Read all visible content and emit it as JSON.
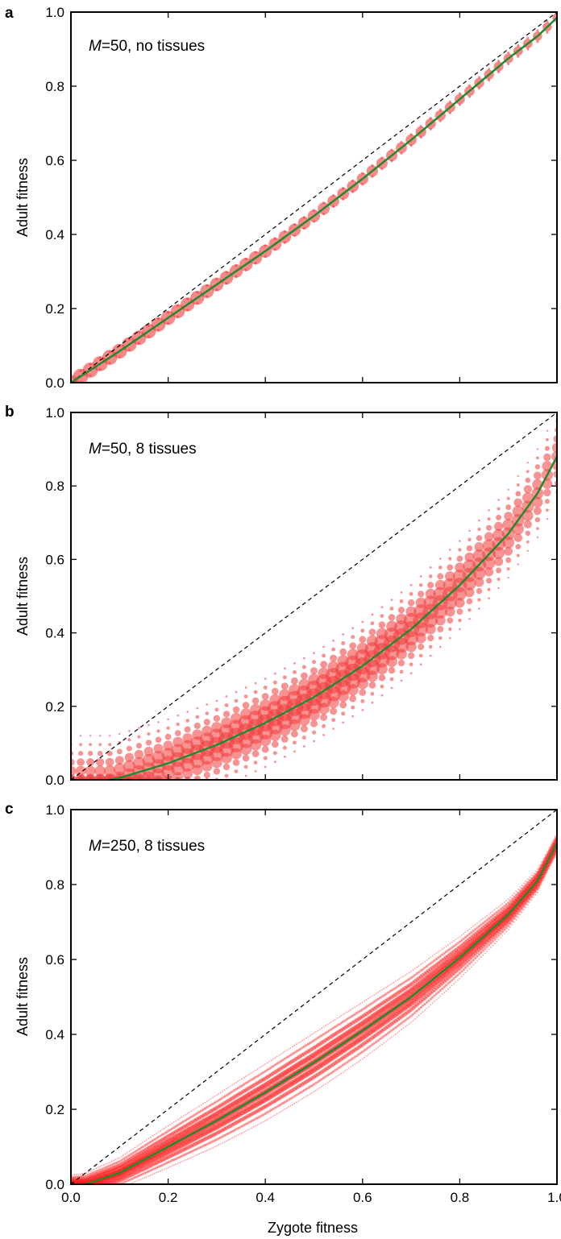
{
  "figure": {
    "xlabel": "Zygote fitness",
    "ylabel": "Adult fitness",
    "colors": {
      "scatter": "#f23b3b",
      "scatter_dense": "#ff1a1a",
      "fit_line": "#1f8a2e",
      "identity_line": "#000000"
    }
  },
  "chart_data": [
    {
      "panel_label": "a",
      "type": "scatter",
      "annotation_var": "M",
      "annotation_rest": "=50, no tissues",
      "xlim": [
        0,
        1
      ],
      "ylim": [
        0,
        1
      ],
      "xticks": [
        "0.0",
        "0.2",
        "0.4",
        "0.6",
        "0.8",
        "1.0"
      ],
      "yticks": [
        "0.0",
        "0.2",
        "0.4",
        "0.6",
        "0.8",
        "1.0"
      ],
      "show_xtick_labels": false,
      "grid": false,
      "reference_line": {
        "type": "identity",
        "style": "dashed",
        "points": [
          [
            0,
            0
          ],
          [
            1,
            1
          ]
        ]
      },
      "fit_line": {
        "style": "solid",
        "points": [
          [
            0,
            0
          ],
          [
            0.1,
            0.085
          ],
          [
            0.2,
            0.175
          ],
          [
            0.3,
            0.265
          ],
          [
            0.4,
            0.355
          ],
          [
            0.5,
            0.45
          ],
          [
            0.6,
            0.55
          ],
          [
            0.7,
            0.655
          ],
          [
            0.8,
            0.765
          ],
          [
            0.9,
            0.875
          ],
          [
            0.96,
            0.935
          ],
          [
            1,
            0.985
          ]
        ]
      },
      "scatter": {
        "x_step": 0.02,
        "spread": 0.015,
        "note": "clusters of point masses centred on the fit line, marker size proportional to frequency"
      }
    },
    {
      "panel_label": "b",
      "type": "scatter",
      "annotation_var": "M",
      "annotation_rest": "=50, 8 tissues",
      "xlim": [
        0,
        1
      ],
      "ylim": [
        0,
        1
      ],
      "xticks": [
        "0.0",
        "0.2",
        "0.4",
        "0.6",
        "0.8",
        "1.0"
      ],
      "yticks": [
        "0.0",
        "0.2",
        "0.4",
        "0.6",
        "0.8",
        "1.0"
      ],
      "show_xtick_labels": false,
      "grid": false,
      "reference_line": {
        "type": "identity",
        "style": "dashed",
        "points": [
          [
            0,
            0
          ],
          [
            1,
            1
          ]
        ]
      },
      "fit_line": {
        "style": "solid",
        "points": [
          [
            0.08,
            0
          ],
          [
            0.1,
            0.005
          ],
          [
            0.2,
            0.045
          ],
          [
            0.3,
            0.095
          ],
          [
            0.4,
            0.155
          ],
          [
            0.5,
            0.225
          ],
          [
            0.6,
            0.31
          ],
          [
            0.7,
            0.41
          ],
          [
            0.8,
            0.53
          ],
          [
            0.9,
            0.67
          ],
          [
            0.96,
            0.78
          ],
          [
            1,
            0.88
          ]
        ]
      },
      "scatter": {
        "x_step": 0.02,
        "spread": 0.12,
        "note": "vertical columns of points centred on the fit line, marker size proportional to frequency"
      }
    },
    {
      "panel_label": "c",
      "type": "scatter",
      "annotation_var": "M",
      "annotation_rest": "=250, 8 tissues",
      "xlim": [
        0,
        1
      ],
      "ylim": [
        0,
        1
      ],
      "xticks": [
        "0.0",
        "0.2",
        "0.4",
        "0.6",
        "0.8",
        "1.0"
      ],
      "yticks": [
        "0.0",
        "0.2",
        "0.4",
        "0.6",
        "0.8",
        "1.0"
      ],
      "show_xtick_labels": true,
      "grid": false,
      "reference_line": {
        "type": "identity",
        "style": "dashed",
        "points": [
          [
            0,
            0
          ],
          [
            1,
            1
          ]
        ]
      },
      "fit_line": {
        "style": "solid",
        "points": [
          [
            0.03,
            0
          ],
          [
            0.1,
            0.03
          ],
          [
            0.2,
            0.1
          ],
          [
            0.3,
            0.17
          ],
          [
            0.4,
            0.245
          ],
          [
            0.5,
            0.325
          ],
          [
            0.6,
            0.41
          ],
          [
            0.7,
            0.5
          ],
          [
            0.8,
            0.605
          ],
          [
            0.9,
            0.72
          ],
          [
            0.96,
            0.81
          ],
          [
            1,
            0.91
          ]
        ]
      },
      "scatter": {
        "x_step": 0.004,
        "spread": 0.06,
        "note": "dense band of points centred on the fit line"
      }
    }
  ]
}
